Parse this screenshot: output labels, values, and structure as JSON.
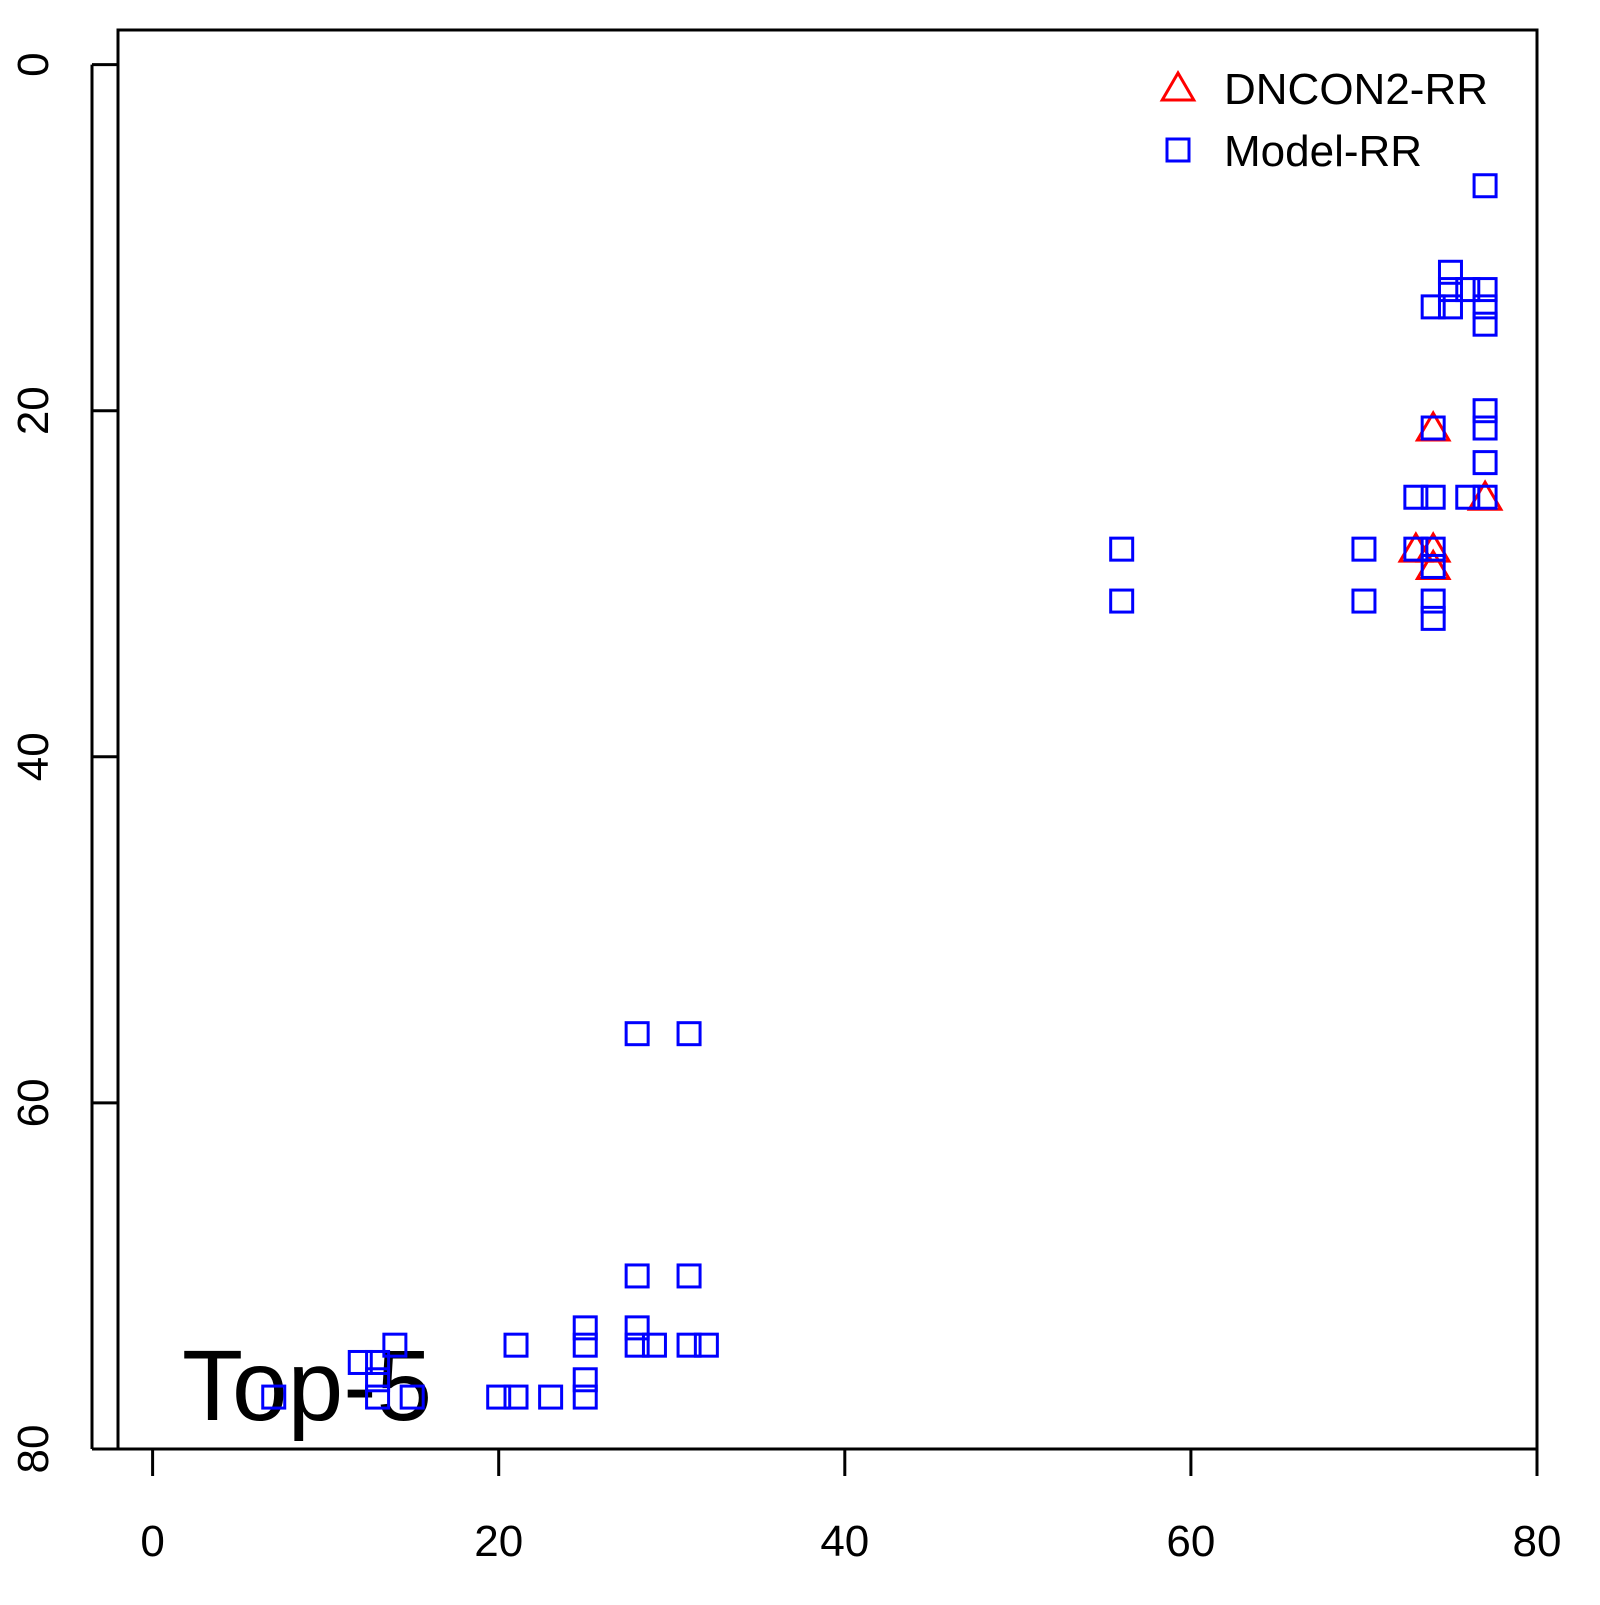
{
  "chart_data": {
    "type": "scatter",
    "annotation": "Top-5",
    "xlim": [
      -2,
      80
    ],
    "xticks": [
      0,
      20,
      40,
      60,
      80
    ],
    "ylim": [
      80,
      -2
    ],
    "yticks": [
      0,
      20,
      40,
      60,
      80
    ],
    "legend_position": "topright",
    "series": [
      {
        "name": "DNCON2-RR",
        "color": "#ff0000",
        "marker": "triangle",
        "x": [
          74,
          77,
          73,
          74,
          74
        ],
        "values": [
          21,
          25,
          28,
          28,
          29
        ]
      },
      {
        "name": "Model-RR",
        "color": "#0000ff",
        "marker": "square",
        "x": [
          77,
          75,
          76,
          75,
          77,
          74,
          75,
          77,
          77,
          77,
          77,
          74,
          77,
          73,
          74,
          76,
          77,
          56,
          70,
          73,
          74,
          74,
          56,
          70,
          74,
          74,
          28,
          31,
          28,
          31,
          25,
          28,
          14,
          21,
          25,
          28,
          29,
          31,
          32,
          12,
          13,
          13,
          25,
          7,
          13,
          15,
          20,
          21,
          23,
          25
        ],
        "values": [
          7,
          12,
          13,
          13,
          13,
          14,
          14,
          14,
          15,
          20,
          21,
          21,
          23,
          25,
          25,
          25,
          25,
          28,
          28,
          28,
          28,
          29,
          31,
          31,
          31,
          32,
          56,
          56,
          70,
          70,
          73,
          73,
          74,
          74,
          74,
          74,
          74,
          74,
          74,
          75,
          75,
          76,
          76,
          77,
          77,
          77,
          77,
          77,
          77,
          77
        ]
      }
    ]
  }
}
